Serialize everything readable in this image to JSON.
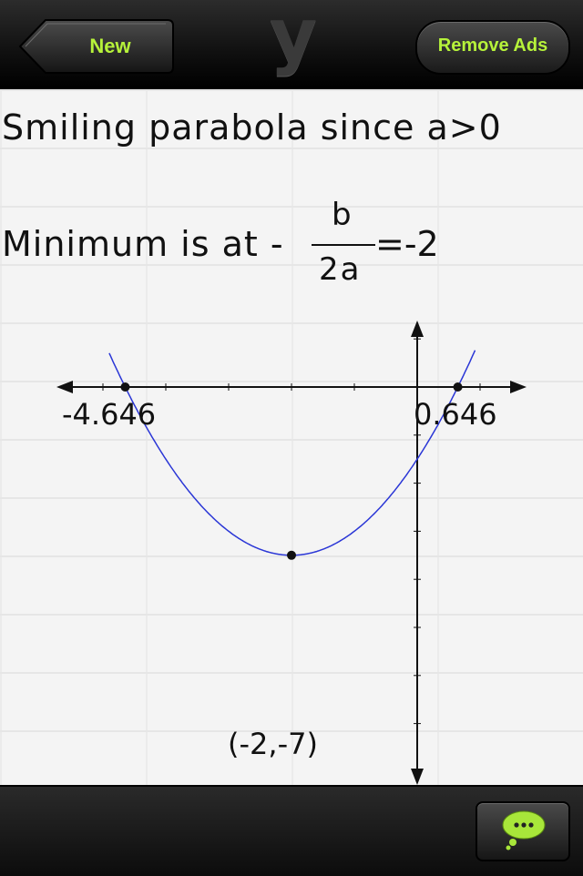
{
  "header": {
    "back_label": "New",
    "logo_text": "y",
    "remove_ads_label": "Remove Ads"
  },
  "explanation": {
    "line1": "Smiling parabola since a>0",
    "line2_prefix": "Minimum is at -",
    "fraction_numerator": "b",
    "fraction_denominator": "2a",
    "line2_suffix": "=-2"
  },
  "graph": {
    "function": "y = (x+2)^2 - 7",
    "root_left_label": "-4.646",
    "root_right_label": "0.646",
    "vertex_label": "(-2,-7)",
    "curve_color": "#2a36d6"
  },
  "footer": {
    "chat_icon": "speech-bubble-icon",
    "chat_color": "#a8e63a"
  }
}
